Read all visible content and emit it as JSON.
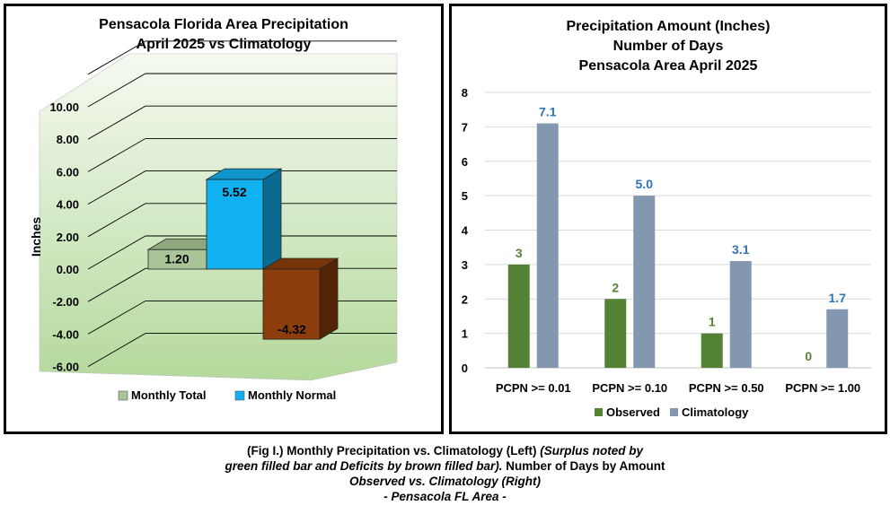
{
  "chart_data": [
    {
      "type": "bar",
      "title": "Pensacola Florida Area Precipitation",
      "subtitle": "April 2025 vs Climatology",
      "ylabel": "Inches",
      "xlabel": "",
      "ylim": [
        -6,
        12
      ],
      "ytick_labels": [
        "-6.00",
        "-4.00",
        "-2.00",
        "0.00",
        "2.00",
        "4.00",
        "6.00",
        "8.00",
        "10.00"
      ],
      "ytick_values": [
        -6,
        -4,
        -2,
        0,
        2,
        4,
        6,
        8,
        10
      ],
      "grid": true,
      "legend_position": "bottom",
      "series": [
        {
          "name": "Monthly Total",
          "value": 1.2,
          "label": "1.20",
          "color": "#a9c597"
        },
        {
          "name": "Monthly Normal",
          "value": 5.52,
          "label": "5.52",
          "color": "#11b0ef"
        }
      ],
      "departure": {
        "value": -4.32,
        "label": "-4.32",
        "color": "#8b3d0c"
      },
      "colors": {
        "plot_top": "#f6faf1",
        "plot_bottom": "#b4d99c"
      }
    },
    {
      "type": "bar",
      "title_lines": [
        "Precipitation Amount (Inches)",
        "Number of Days",
        "Pensacola Area April 2025"
      ],
      "categories": [
        "PCPN >= 0.01",
        "PCPN >= 0.10",
        "PCPN >= 0.50",
        "PCPN >= 1.00"
      ],
      "ylim": [
        0,
        8
      ],
      "yticks": [
        "0",
        "1",
        "2",
        "3",
        "4",
        "5",
        "6",
        "7",
        "8"
      ],
      "grid": true,
      "legend_position": "bottom",
      "series": [
        {
          "name": "Observed",
          "values": [
            3,
            2,
            1,
            0
          ],
          "labels": [
            "3",
            "2",
            "1",
            "0"
          ],
          "color": "#548235",
          "label_color": "#548235"
        },
        {
          "name": "Climatology",
          "values": [
            7.1,
            5.0,
            3.1,
            1.7
          ],
          "labels": [
            "7.1",
            "5.0",
            "3.1",
            "1.7"
          ],
          "color": "#8497b0",
          "label_color": "#2e75b6"
        }
      ]
    }
  ],
  "caption": {
    "line1_bold": "(Fig I.) Monthly Precipitation vs. Climatology (Left) ",
    "line1_italic": "(Surplus noted by",
    "line2_italic": "green filled bar and Deficits by brown filled bar).",
    "line2_bold": " Number of Days by Amount",
    "line3": "Observed vs. Climatology (Right)",
    "line4": "- Pensacola FL Area -"
  }
}
